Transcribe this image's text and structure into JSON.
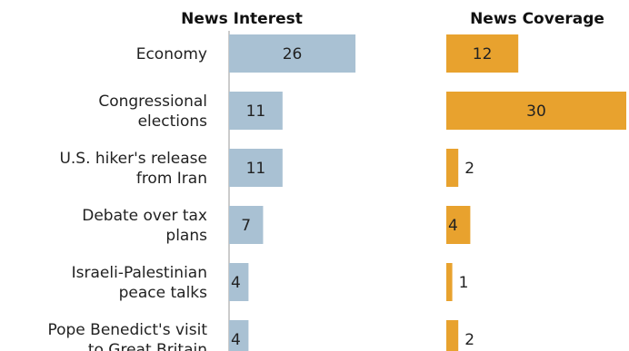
{
  "chart_data": {
    "type": "bar",
    "orientation": "horizontal",
    "categories": [
      [
        "Economy"
      ],
      [
        "Congressional",
        "elections"
      ],
      [
        "U.S. hiker's release",
        "from Iran"
      ],
      [
        "Debate over tax",
        "plans"
      ],
      [
        "Israeli-Palestinian",
        "peace talks"
      ],
      [
        "Pope Benedict's visit",
        "to Great Britain"
      ]
    ],
    "series": [
      {
        "name": "News Interest",
        "values": [
          26,
          11,
          11,
          7,
          4,
          4
        ],
        "color": "#a9c1d3"
      },
      {
        "name": "News Coverage",
        "values": [
          12,
          30,
          2,
          4,
          1,
          2
        ],
        "color": "#e8a22e"
      }
    ],
    "grid": false,
    "legend": "none"
  }
}
